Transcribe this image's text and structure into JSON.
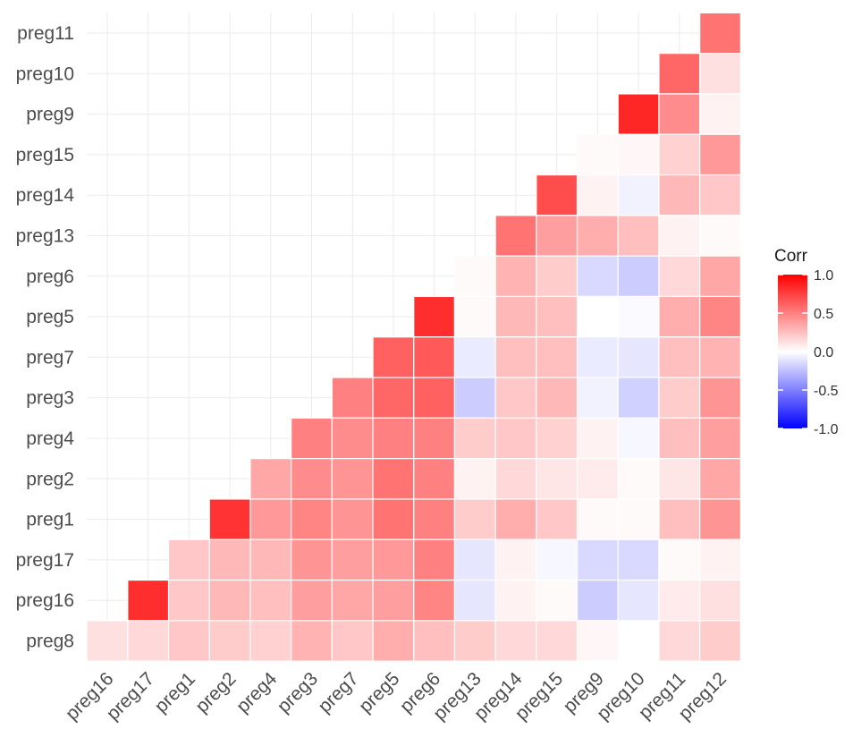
{
  "chart_data": {
    "type": "heatmap",
    "title": "",
    "xlabel": "",
    "ylabel": "",
    "x_categories": [
      "preg16",
      "preg17",
      "preg1",
      "preg2",
      "preg4",
      "preg3",
      "preg7",
      "preg5",
      "preg6",
      "preg13",
      "preg14",
      "preg15",
      "preg9",
      "preg10",
      "preg11",
      "preg12"
    ],
    "y_categories": [
      "preg11",
      "preg10",
      "preg9",
      "preg15",
      "preg14",
      "preg13",
      "preg6",
      "preg5",
      "preg7",
      "preg3",
      "preg4",
      "preg2",
      "preg1",
      "preg17",
      "preg16",
      "preg8"
    ],
    "values": [
      [
        null,
        null,
        null,
        null,
        null,
        null,
        null,
        null,
        null,
        null,
        null,
        null,
        null,
        null,
        null,
        0.55
      ],
      [
        null,
        null,
        null,
        null,
        null,
        null,
        null,
        null,
        null,
        null,
        null,
        null,
        null,
        null,
        0.6,
        0.12
      ],
      [
        null,
        null,
        null,
        null,
        null,
        null,
        null,
        null,
        null,
        null,
        null,
        null,
        null,
        0.85,
        0.45,
        0.05
      ],
      [
        null,
        null,
        null,
        null,
        null,
        null,
        null,
        null,
        null,
        null,
        null,
        null,
        0.02,
        0.03,
        0.18,
        0.4
      ],
      [
        null,
        null,
        null,
        null,
        null,
        null,
        null,
        null,
        null,
        null,
        null,
        0.7,
        0.05,
        -0.05,
        0.28,
        0.22
      ],
      [
        null,
        null,
        null,
        null,
        null,
        null,
        null,
        null,
        null,
        null,
        0.55,
        0.38,
        0.32,
        0.25,
        0.05,
        0.02
      ],
      [
        null,
        null,
        null,
        null,
        null,
        null,
        null,
        null,
        null,
        0.02,
        0.3,
        0.2,
        -0.15,
        -0.2,
        0.15,
        0.35
      ],
      [
        null,
        null,
        null,
        null,
        null,
        null,
        null,
        null,
        0.82,
        0.02,
        0.28,
        0.25,
        0.0,
        -0.02,
        0.32,
        0.48
      ],
      [
        null,
        null,
        null,
        null,
        null,
        null,
        null,
        0.62,
        0.65,
        -0.08,
        0.25,
        0.25,
        -0.08,
        -0.1,
        0.25,
        0.3
      ],
      [
        null,
        null,
        null,
        null,
        null,
        null,
        0.5,
        0.6,
        0.62,
        -0.2,
        0.22,
        0.28,
        -0.05,
        -0.18,
        0.2,
        0.42
      ],
      [
        null,
        null,
        null,
        null,
        null,
        0.5,
        0.45,
        0.5,
        0.5,
        0.2,
        0.22,
        0.18,
        0.05,
        -0.03,
        0.25,
        0.38
      ],
      [
        null,
        null,
        null,
        null,
        0.35,
        0.45,
        0.42,
        0.55,
        0.5,
        0.05,
        0.15,
        0.1,
        0.08,
        0.02,
        0.1,
        0.35
      ],
      [
        null,
        null,
        null,
        0.8,
        0.4,
        0.48,
        0.42,
        0.55,
        0.5,
        0.2,
        0.32,
        0.22,
        0.02,
        0.02,
        0.25,
        0.42
      ],
      [
        null,
        null,
        0.22,
        0.28,
        0.28,
        0.42,
        0.38,
        0.4,
        0.5,
        -0.1,
        0.05,
        -0.03,
        -0.15,
        -0.15,
        0.02,
        0.05
      ],
      [
        null,
        0.82,
        0.22,
        0.28,
        0.25,
        0.38,
        0.35,
        0.38,
        0.48,
        -0.1,
        0.05,
        0.02,
        -0.2,
        -0.1,
        0.08,
        0.12
      ],
      [
        0.12,
        0.15,
        0.22,
        0.2,
        0.18,
        0.3,
        0.22,
        0.32,
        0.25,
        0.2,
        0.15,
        0.15,
        0.03,
        0.0,
        0.15,
        0.2
      ]
    ],
    "color_scale": {
      "low": "#0000ff",
      "mid": "#ffffff",
      "high": "#ff0000",
      "limits": [
        -1,
        1
      ]
    },
    "legend": {
      "title": "Corr",
      "position": "right",
      "ticks": [
        1.0,
        0.5,
        0.0,
        -0.5,
        -1.0
      ],
      "tick_labels": [
        "1.0",
        "0.5",
        "0.0",
        "-0.5",
        "-1.0"
      ]
    },
    "grid": true
  }
}
